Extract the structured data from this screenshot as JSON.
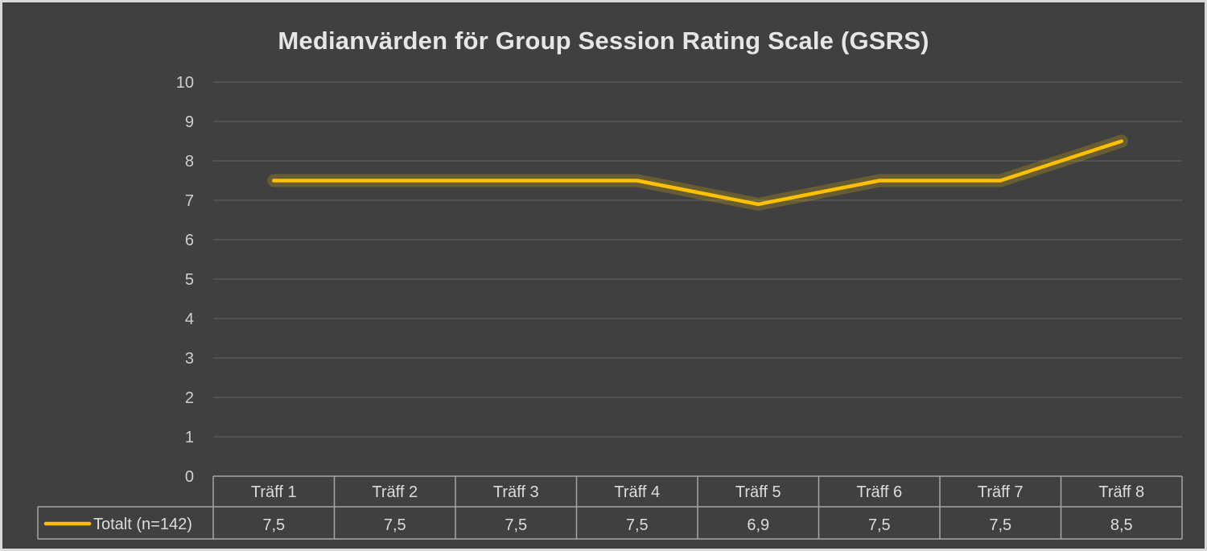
{
  "chart_data": {
    "type": "line",
    "title": "Medianvärden för Group Session Rating Scale (GSRS)",
    "categories": [
      "Träff 1",
      "Träff 2",
      "Träff 3",
      "Träff 4",
      "Träff 5",
      "Träff 6",
      "Träff 7",
      "Träff 8"
    ],
    "series": [
      {
        "name": "Totalt (n=142)",
        "values": [
          7.5,
          7.5,
          7.5,
          7.5,
          6.9,
          7.5,
          7.5,
          8.5
        ],
        "labels": [
          "7,5",
          "7,5",
          "7,5",
          "7,5",
          "6,9",
          "7,5",
          "7,5",
          "8,5"
        ],
        "color": "#ffc000"
      }
    ],
    "ylim": [
      0,
      10
    ],
    "yticks": [
      "0",
      "1",
      "2",
      "3",
      "4",
      "5",
      "6",
      "7",
      "8",
      "9",
      "10"
    ],
    "grid": true,
    "legend": "data table with legend key",
    "background_color": "#404040"
  }
}
